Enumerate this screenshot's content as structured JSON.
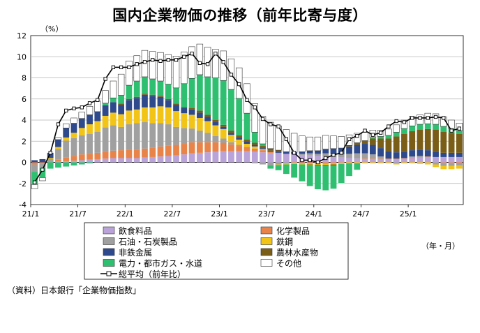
{
  "title": "国内企業物価の推移（前年比寄与度）",
  "source": "（資料）日本銀行「企業物価指数」",
  "chart_data": {
    "type": "bar",
    "stacked": true,
    "title": "国内企業物価の推移（前年比寄与度）",
    "ylabel": "（%）",
    "xlabel": "（年・月）",
    "ylim": [
      -4,
      12
    ],
    "yticks": [
      -4,
      -2,
      0,
      2,
      4,
      6,
      8,
      10,
      12
    ],
    "grid": true,
    "legend_position": "bottom",
    "x_tick_labels": [
      {
        "label": "21/1",
        "index": 0
      },
      {
        "label": "21/7",
        "index": 6
      },
      {
        "label": "22/1",
        "index": 12
      },
      {
        "label": "22/7",
        "index": 18
      },
      {
        "label": "23/1",
        "index": 24
      },
      {
        "label": "23/7",
        "index": 30
      },
      {
        "label": "24/1",
        "index": 36
      },
      {
        "label": "24/7",
        "index": 42
      },
      {
        "label": "25/1",
        "index": 48
      }
    ],
    "categories": [
      "21/1",
      "21/2",
      "21/3",
      "21/4",
      "21/5",
      "21/6",
      "21/7",
      "21/8",
      "21/9",
      "21/10",
      "21/11",
      "21/12",
      "22/1",
      "22/2",
      "22/3",
      "22/4",
      "22/5",
      "22/6",
      "22/7",
      "22/8",
      "22/9",
      "22/10",
      "22/11",
      "22/12",
      "23/1",
      "23/2",
      "23/3",
      "23/4",
      "23/5",
      "23/6",
      "23/7",
      "23/8",
      "23/9",
      "23/10",
      "23/11",
      "23/12",
      "24/1",
      "24/2",
      "24/3",
      "24/4",
      "24/5",
      "24/6",
      "24/7",
      "24/8",
      "24/9",
      "24/10",
      "24/11",
      "24/12",
      "25/1",
      "25/2",
      "25/3",
      "25/4",
      "25/5",
      "25/6",
      "25/7"
    ],
    "series": [
      {
        "name": "飲食料品",
        "color": "#b9a3d9",
        "values": [
          0.0,
          0.0,
          0.0,
          0.05,
          0.1,
          0.15,
          0.2,
          0.25,
          0.3,
          0.35,
          0.4,
          0.4,
          0.4,
          0.4,
          0.45,
          0.5,
          0.55,
          0.6,
          0.65,
          0.75,
          0.85,
          0.9,
          0.95,
          1.0,
          1.05,
          1.05,
          1.05,
          1.05,
          1.0,
          0.95,
          0.9,
          0.85,
          0.8,
          0.75,
          0.7,
          0.65,
          0.6,
          0.55,
          0.5,
          0.45,
          0.4,
          0.35,
          0.3,
          0.3,
          0.3,
          0.3,
          0.3,
          0.35,
          0.4,
          0.45,
          0.5,
          0.5,
          0.5,
          0.5,
          0.5
        ]
      },
      {
        "name": "化学製品",
        "color": "#e8844a",
        "values": [
          -0.2,
          -0.15,
          0.0,
          0.2,
          0.35,
          0.45,
          0.55,
          0.55,
          0.6,
          0.65,
          0.7,
          0.75,
          0.8,
          0.8,
          0.85,
          0.9,
          0.95,
          1.0,
          1.0,
          1.0,
          1.05,
          1.0,
          0.95,
          0.9,
          0.8,
          0.65,
          0.5,
          0.4,
          0.3,
          0.2,
          0.1,
          0.05,
          0.0,
          -0.05,
          -0.1,
          -0.1,
          -0.15,
          -0.15,
          -0.1,
          -0.05,
          0.0,
          0.0,
          0.05,
          0.05,
          0.05,
          0.05,
          0.05,
          0.05,
          0.05,
          0.05,
          0.05,
          0.0,
          -0.05,
          -0.05,
          -0.1
        ]
      },
      {
        "name": "石油・石炭製品",
        "color": "#a0a0a0",
        "values": [
          -0.7,
          -0.4,
          0.3,
          1.0,
          1.6,
          1.7,
          1.8,
          1.9,
          2.0,
          2.3,
          2.4,
          2.2,
          2.4,
          2.5,
          2.5,
          2.3,
          2.2,
          2.0,
          1.7,
          1.5,
          1.3,
          1.1,
          0.9,
          0.6,
          0.4,
          0.2,
          0.1,
          0.0,
          -0.1,
          -0.2,
          -0.3,
          -0.2,
          -0.1,
          0.0,
          0.1,
          0.2,
          0.2,
          0.3,
          0.3,
          0.3,
          0.4,
          0.5,
          0.5,
          0.4,
          0.2,
          0.0,
          -0.1,
          0.0,
          0.1,
          0.1,
          0.0,
          -0.2,
          -0.3,
          -0.3,
          -0.2
        ]
      },
      {
        "name": "鉄鋼",
        "color": "#f2c417",
        "values": [
          0.0,
          0.0,
          0.1,
          0.2,
          0.3,
          0.5,
          0.7,
          0.9,
          1.0,
          1.1,
          1.2,
          1.2,
          1.3,
          1.3,
          1.4,
          1.5,
          1.6,
          1.6,
          1.5,
          1.4,
          1.3,
          1.2,
          1.1,
          1.0,
          0.9,
          0.7,
          0.5,
          0.3,
          0.2,
          0.1,
          0.0,
          -0.05,
          -0.1,
          -0.1,
          -0.1,
          -0.1,
          -0.1,
          -0.1,
          -0.1,
          -0.1,
          -0.1,
          -0.1,
          -0.1,
          -0.1,
          -0.1,
          -0.1,
          -0.1,
          -0.1,
          -0.1,
          -0.15,
          -0.2,
          -0.25,
          -0.3,
          -0.3,
          -0.3
        ]
      },
      {
        "name": "非鉄金属",
        "color": "#2e4a8c",
        "values": [
          0.2,
          0.3,
          0.5,
          0.7,
          0.9,
          0.9,
          0.9,
          0.9,
          0.9,
          1.0,
          1.0,
          0.9,
          1.0,
          1.1,
          1.2,
          1.1,
          0.9,
          0.7,
          0.6,
          0.5,
          0.5,
          0.5,
          0.4,
          0.3,
          0.2,
          0.2,
          0.2,
          0.2,
          0.15,
          0.1,
          0.1,
          0.15,
          0.2,
          0.2,
          0.2,
          0.25,
          0.3,
          0.4,
          0.5,
          0.6,
          0.7,
          0.8,
          0.9,
          0.9,
          0.8,
          0.7,
          0.6,
          0.6,
          0.6,
          0.6,
          0.6,
          0.5,
          0.4,
          0.4,
          0.4
        ]
      },
      {
        "name": "農林水産物",
        "color": "#7a5e18",
        "values": [
          0.0,
          0.0,
          0.0,
          0.0,
          0.0,
          0.0,
          0.0,
          0.0,
          0.0,
          0.0,
          0.0,
          0.1,
          0.1,
          0.1,
          0.1,
          0.1,
          0.1,
          0.1,
          0.1,
          0.1,
          0.15,
          0.2,
          0.2,
          0.2,
          0.2,
          0.2,
          0.2,
          0.2,
          0.2,
          0.2,
          0.2,
          0.1,
          0.0,
          0.0,
          0.0,
          -0.05,
          -0.1,
          -0.1,
          -0.1,
          0.0,
          0.1,
          0.2,
          0.3,
          0.6,
          0.9,
          1.2,
          1.5,
          1.7,
          1.8,
          1.9,
          2.0,
          2.1,
          2.0,
          1.9,
          1.8
        ]
      },
      {
        "name": "電力・都市ガス・水道",
        "color": "#2fbf71",
        "values": [
          -1.2,
          -0.9,
          -0.6,
          -0.5,
          -0.4,
          -0.3,
          -0.2,
          -0.1,
          0.0,
          0.2,
          0.4,
          0.8,
          1.3,
          1.5,
          1.6,
          1.5,
          1.4,
          1.4,
          1.5,
          2.2,
          2.8,
          3.4,
          3.6,
          4.0,
          4.2,
          3.9,
          3.5,
          2.5,
          1.0,
          0.2,
          -0.3,
          -0.5,
          -0.9,
          -1.3,
          -1.6,
          -2.0,
          -2.2,
          -2.3,
          -2.2,
          -1.8,
          -1.2,
          -0.6,
          0.0,
          0.1,
          0.2,
          0.3,
          0.4,
          0.5,
          0.5,
          0.5,
          0.5,
          0.5,
          0.5,
          0.4,
          0.3
        ]
      },
      {
        "name": "その他",
        "color": "#ffffff",
        "values": [
          -0.4,
          -0.3,
          0.0,
          0.2,
          0.4,
          0.5,
          0.6,
          0.8,
          1.0,
          1.2,
          1.6,
          2.0,
          2.3,
          2.4,
          2.5,
          2.6,
          2.7,
          2.8,
          3.0,
          3.0,
          3.0,
          2.9,
          2.8,
          2.7,
          2.8,
          2.9,
          2.9,
          2.8,
          2.7,
          2.6,
          2.5,
          2.3,
          2.1,
          1.8,
          1.5,
          1.3,
          1.3,
          1.3,
          1.2,
          1.1,
          1.0,
          0.9,
          0.8,
          0.7,
          0.6,
          0.6,
          0.7,
          0.8,
          0.9,
          0.9,
          1.0,
          1.0,
          0.9,
          0.8,
          0.7
        ]
      }
    ],
    "line_series": {
      "name": "総平均（前年比）",
      "values": [
        -1.9,
        -0.7,
        0.9,
        3.6,
        4.9,
        5.1,
        5.2,
        5.6,
        5.9,
        7.9,
        9.0,
        9.0,
        9.0,
        9.3,
        9.5,
        9.7,
        9.6,
        9.7,
        9.7,
        10.0,
        10.3,
        9.4,
        9.3,
        10.3,
        9.5,
        8.3,
        7.4,
        5.9,
        5.2,
        4.1,
        3.6,
        3.4,
        2.2,
        0.9,
        0.2,
        0.2,
        0.0,
        0.4,
        0.7,
        0.9,
        2.2,
        2.5,
        3.0,
        2.6,
        2.8,
        3.4,
        3.9,
        3.8,
        4.2,
        4.2,
        4.2,
        4.3,
        4.2,
        3.0,
        3.2
      ]
    }
  },
  "legend": [
    {
      "label": "飲食料品",
      "color": "#b9a3d9"
    },
    {
      "label": "化学製品",
      "color": "#e8844a"
    },
    {
      "label": "石油・石炭製品",
      "color": "#a0a0a0"
    },
    {
      "label": "鉄鋼",
      "color": "#f2c417"
    },
    {
      "label": "非鉄金属",
      "color": "#2e4a8c"
    },
    {
      "label": "農林水産物",
      "color": "#7a5e18"
    },
    {
      "label": "電力・都市ガス・水道",
      "color": "#2fbf71"
    },
    {
      "label": "その他",
      "color": "#ffffff"
    },
    {
      "label": "総平均（前年比）",
      "color": "#000000"
    }
  ]
}
